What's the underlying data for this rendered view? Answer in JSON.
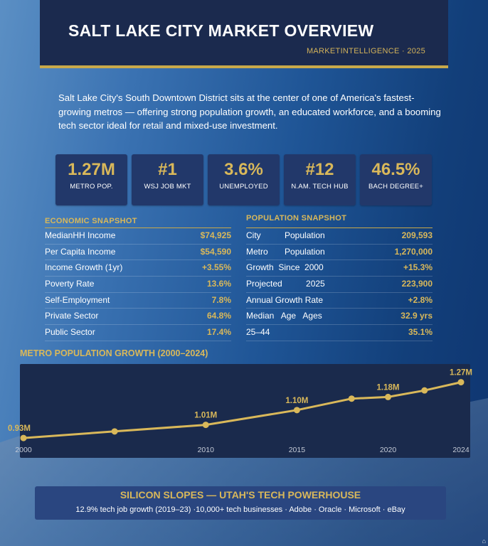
{
  "header": {
    "title": "SALT LAKE CITY MARKET OVERVIEW",
    "subtitle": "MARKETINTELLIGENCE · 2025"
  },
  "intro": "Salt Lake City's South Downtown District sits at the center of one of America's fastest-growing metros — offering strong population growth, an educated workforce, and a booming tech sector ideal for retail and mixed-use investment.",
  "stats": [
    {
      "value": "1.27M",
      "label": "METRO POP."
    },
    {
      "value": "#1",
      "label": "WSJ JOB MKT"
    },
    {
      "value": "3.6%",
      "label": "UNEMPLOYED"
    },
    {
      "value": "#12",
      "label": "N.AM. TECH HUB"
    },
    {
      "value": "46.5%",
      "label": "BACH DEGREE+"
    }
  ],
  "economic": {
    "title": "ECONOMIC SNAPSHOT",
    "rows": [
      {
        "label": "MedianHH Income",
        "value": "$74,925"
      },
      {
        "label": "Per Capita Income",
        "value": "$54,590"
      },
      {
        "label": "Income Growth (1yr)",
        "value": "+3.55%"
      },
      {
        "label": "Poverty Rate",
        "value": "13.6%"
      },
      {
        "label": "Self-Employment",
        "value": "7.8%"
      },
      {
        "label": "Private Sector",
        "value": "64.8%"
      },
      {
        "label": "Public Sector",
        "value": "17.4%"
      }
    ]
  },
  "population": {
    "title": "POPULATION SNAPSHOT",
    "rows": [
      {
        "label": "City          Population",
        "value": "209,593"
      },
      {
        "label": "Metro       Population",
        "value": "1,270,000"
      },
      {
        "label": "Growth  Since  2000",
        "value": "+15.3%"
      },
      {
        "label": "Projected          2025",
        "value": "223,900"
      },
      {
        "label": "Annual Growth Rate",
        "value": "+2.8%"
      },
      {
        "label": "Median   Age   Ages",
        "value": "32.9 yrs"
      },
      {
        "label": "25–44",
        "value": "35.1%"
      }
    ]
  },
  "chart_data": {
    "type": "line",
    "title": "METRO POPULATION GROWTH (2000–2024)",
    "x": [
      2000,
      2005,
      2010,
      2015,
      2018,
      2020,
      2022,
      2024
    ],
    "y": [
      0.93,
      0.97,
      1.01,
      1.1,
      1.17,
      1.18,
      1.22,
      1.27
    ],
    "xticks": [
      "2000",
      "2010",
      "2015",
      "2020",
      "2024"
    ],
    "data_labels": {
      "2000": "0.93M",
      "2010": "1.01M",
      "2015": "1.10M",
      "2020": "1.18M",
      "2024": "1.27M"
    },
    "xlim": [
      2000,
      2024
    ],
    "ylim": [
      0.9,
      1.29
    ],
    "line_color": "#d9b85a",
    "grid": false
  },
  "banner": {
    "title": "SILICON SLOPES — UTAH'S TECH POWERHOUSE",
    "detail": "12.9% tech job growth (2019–23)  ·10,000+ tech businesses · Adobe · Oracle · Microsoft · eBay"
  },
  "corner_icon": "house-icon",
  "colors": {
    "gold": "#d9b85a",
    "navy": "#1b2a4e",
    "card": "#22386a"
  }
}
